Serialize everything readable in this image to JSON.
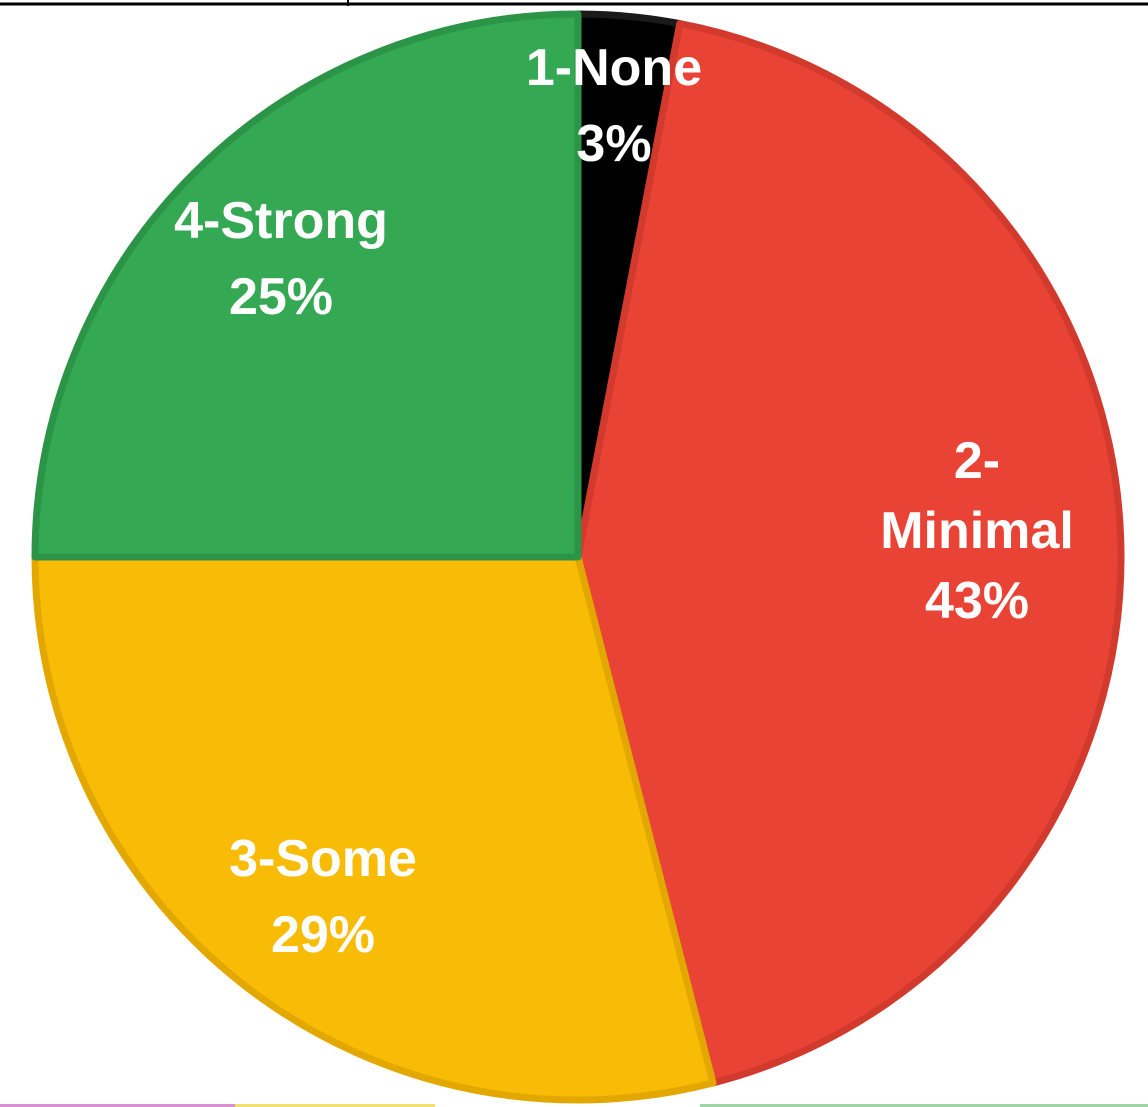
{
  "chart_data": {
    "type": "pie",
    "title": "",
    "start_angle_deg": 0,
    "direction": "clockwise",
    "slices": [
      {
        "label": "1-None",
        "value": 3,
        "value_label": "3%",
        "color": "#000000",
        "stroke": "#1a1a1a"
      },
      {
        "label": "2-Minimal",
        "value": 43,
        "value_label": "43%",
        "color": "#e94335",
        "stroke": "#d33a2e"
      },
      {
        "label": "3-Some",
        "value": 29,
        "value_label": "29%",
        "color": "#f8bb06",
        "stroke": "#e3a800"
      },
      {
        "label": "4-Strong",
        "value": 25,
        "value_label": "25%",
        "color": "#34a853",
        "stroke": "#2b9447"
      }
    ]
  }
}
